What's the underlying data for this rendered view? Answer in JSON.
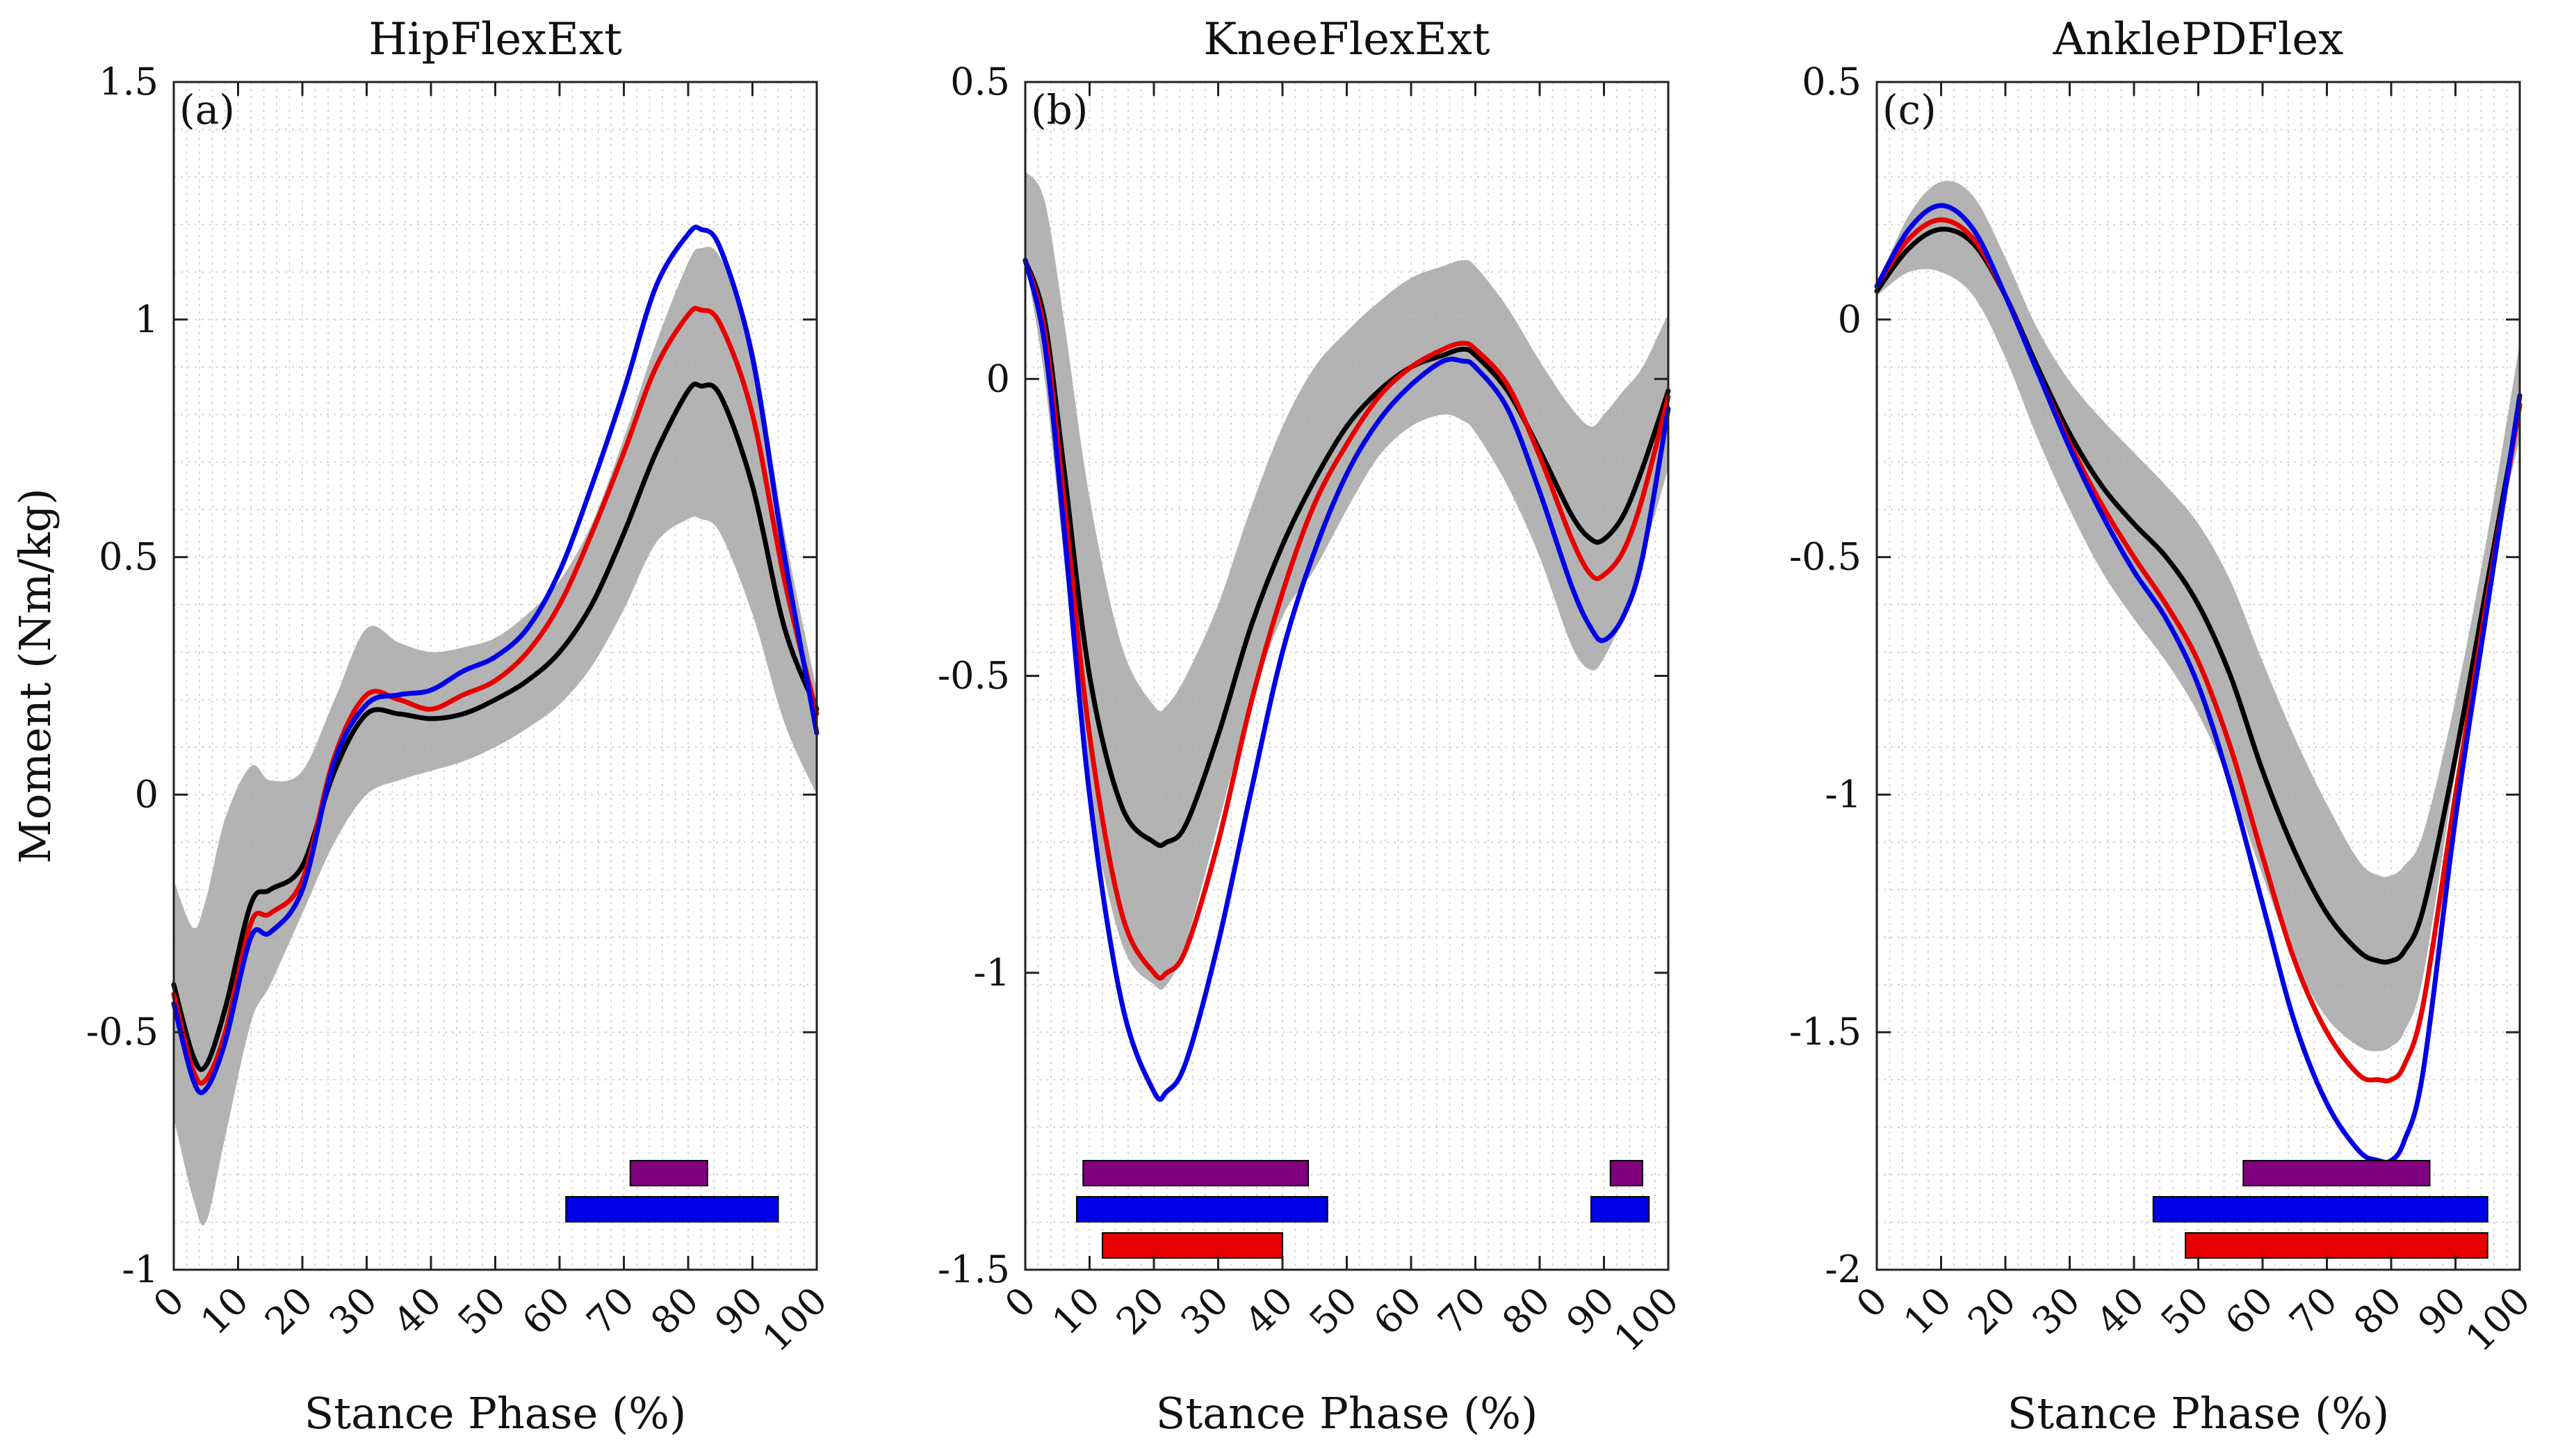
{
  "chart_data": [
    {
      "type": "line",
      "panel_label": "(a)",
      "title": "HipFlexExt",
      "xlabel": "Stance Phase (%)",
      "ylabel": "Moment (Nm/kg)",
      "xlim": [
        0,
        100
      ],
      "ylim": [
        -1,
        1.5
      ],
      "xticks": [
        "0",
        "10",
        "20",
        "30",
        "40",
        "50",
        "60",
        "70",
        "80",
        "90",
        "100"
      ],
      "yticks": [
        "-1",
        "-0.5",
        "0",
        "0.5",
        "1",
        "1.5"
      ],
      "ytick_values": [
        -1,
        -0.5,
        0,
        0.5,
        1,
        1.5
      ],
      "grid": true,
      "x": [
        0,
        3,
        5,
        8,
        12,
        15,
        20,
        25,
        30,
        35,
        40,
        45,
        50,
        55,
        60,
        65,
        70,
        75,
        80,
        82,
        85,
        90,
        95,
        100
      ],
      "band": {
        "upper": [
          -0.18,
          -0.28,
          -0.22,
          -0.05,
          0.06,
          0.03,
          0.05,
          0.2,
          0.35,
          0.32,
          0.3,
          0.31,
          0.33,
          0.38,
          0.45,
          0.57,
          0.75,
          0.95,
          1.12,
          1.15,
          1.13,
          0.95,
          0.55,
          0.22
        ],
        "lower": [
          -0.68,
          -0.85,
          -0.9,
          -0.72,
          -0.48,
          -0.4,
          -0.25,
          -0.1,
          0.0,
          0.03,
          0.05,
          0.07,
          0.1,
          0.14,
          0.19,
          0.27,
          0.39,
          0.53,
          0.58,
          0.58,
          0.55,
          0.38,
          0.15,
          0.0
        ]
      },
      "series": [
        {
          "color": "#000000",
          "values": [
            -0.4,
            -0.55,
            -0.57,
            -0.45,
            -0.23,
            -0.2,
            -0.15,
            0.05,
            0.17,
            0.17,
            0.16,
            0.17,
            0.2,
            0.24,
            0.3,
            0.4,
            0.55,
            0.72,
            0.85,
            0.86,
            0.84,
            0.65,
            0.35,
            0.18
          ]
        },
        {
          "color": "#e60000",
          "values": [
            -0.42,
            -0.58,
            -0.6,
            -0.5,
            -0.27,
            -0.25,
            -0.18,
            0.08,
            0.21,
            0.2,
            0.18,
            0.21,
            0.24,
            0.3,
            0.4,
            0.55,
            0.72,
            0.9,
            1.01,
            1.02,
            0.99,
            0.8,
            0.45,
            0.17
          ]
        },
        {
          "color": "#0000e6",
          "values": [
            -0.44,
            -0.6,
            -0.62,
            -0.52,
            -0.3,
            -0.29,
            -0.2,
            0.07,
            0.19,
            0.21,
            0.22,
            0.26,
            0.29,
            0.35,
            0.47,
            0.65,
            0.85,
            1.07,
            1.18,
            1.19,
            1.15,
            0.92,
            0.5,
            0.13
          ]
        }
      ],
      "significance_bars": [
        {
          "color": "#800080",
          "start": 71,
          "end": 83
        },
        {
          "color": "#0000e6",
          "start": 61,
          "end": 94
        }
      ]
    },
    {
      "type": "line",
      "panel_label": "(b)",
      "title": "KneeFlexExt",
      "xlabel": "Stance Phase (%)",
      "ylabel": "",
      "xlim": [
        0,
        100
      ],
      "ylim": [
        -1.5,
        0.5
      ],
      "xticks": [
        "0",
        "10",
        "20",
        "30",
        "40",
        "50",
        "60",
        "70",
        "80",
        "90",
        "100"
      ],
      "yticks": [
        "-1.5",
        "-1",
        "-0.5",
        "0",
        "0.5"
      ],
      "ytick_values": [
        -1.5,
        -1,
        -0.5,
        0,
        0.5
      ],
      "grid": true,
      "x": [
        0,
        3,
        6,
        10,
        15,
        20,
        22,
        25,
        30,
        35,
        40,
        45,
        50,
        55,
        60,
        65,
        68,
        70,
        75,
        80,
        85,
        88,
        90,
        93,
        96,
        100
      ],
      "band": {
        "upper": [
          0.35,
          0.3,
          0.1,
          -0.2,
          -0.45,
          -0.55,
          -0.55,
          -0.5,
          -0.38,
          -0.22,
          -0.08,
          0.02,
          0.08,
          0.13,
          0.17,
          0.19,
          0.2,
          0.19,
          0.12,
          0.03,
          -0.05,
          -0.08,
          -0.06,
          -0.02,
          0.02,
          0.11
        ],
        "lower": [
          0.2,
          0.0,
          -0.3,
          -0.7,
          -0.95,
          -1.02,
          -1.02,
          -0.95,
          -0.75,
          -0.55,
          -0.4,
          -0.32,
          -0.22,
          -0.13,
          -0.08,
          -0.06,
          -0.07,
          -0.09,
          -0.18,
          -0.3,
          -0.45,
          -0.49,
          -0.47,
          -0.4,
          -0.3,
          -0.15
        ]
      },
      "series": [
        {
          "color": "#000000",
          "values": [
            0.2,
            0.1,
            -0.15,
            -0.5,
            -0.72,
            -0.78,
            -0.78,
            -0.75,
            -0.6,
            -0.42,
            -0.28,
            -0.17,
            -0.08,
            -0.02,
            0.02,
            0.04,
            0.05,
            0.04,
            -0.02,
            -0.12,
            -0.23,
            -0.27,
            -0.27,
            -0.23,
            -0.15,
            -0.02
          ]
        },
        {
          "color": "#e60000",
          "values": [
            0.2,
            0.08,
            -0.2,
            -0.6,
            -0.9,
            -1.0,
            -1.0,
            -0.96,
            -0.78,
            -0.55,
            -0.36,
            -0.21,
            -0.11,
            -0.03,
            0.02,
            0.05,
            0.06,
            0.05,
            -0.01,
            -0.13,
            -0.27,
            -0.33,
            -0.33,
            -0.29,
            -0.2,
            -0.03
          ]
        },
        {
          "color": "#0000e6",
          "values": [
            0.2,
            0.06,
            -0.25,
            -0.7,
            -1.05,
            -1.2,
            -1.2,
            -1.15,
            -0.95,
            -0.7,
            -0.46,
            -0.29,
            -0.16,
            -0.07,
            -0.01,
            0.03,
            0.03,
            0.02,
            -0.05,
            -0.19,
            -0.35,
            -0.42,
            -0.44,
            -0.4,
            -0.3,
            -0.05
          ]
        }
      ],
      "significance_bars": [
        {
          "color": "#800080",
          "start": 9,
          "end": 44
        },
        {
          "color": "#800080",
          "start": 91,
          "end": 96
        },
        {
          "color": "#0000e6",
          "start": 8,
          "end": 47
        },
        {
          "color": "#0000e6",
          "start": 88,
          "end": 97
        },
        {
          "color": "#e60000",
          "start": 12,
          "end": 40
        }
      ]
    },
    {
      "type": "line",
      "panel_label": "(c)",
      "title": "AnklePDFlex",
      "xlabel": "Stance Phase (%)",
      "ylabel": "",
      "xlim": [
        0,
        100
      ],
      "ylim": [
        -2,
        0.5
      ],
      "xticks": [
        "0",
        "10",
        "20",
        "30",
        "40",
        "50",
        "60",
        "70",
        "80",
        "90",
        "100"
      ],
      "yticks": [
        "-2",
        "-1.5",
        "-1",
        "-0.5",
        "0",
        "0.5"
      ],
      "ytick_values": [
        -2,
        -1.5,
        -1,
        -0.5,
        0,
        0.5
      ],
      "grid": true,
      "x": [
        0,
        5,
        10,
        15,
        20,
        25,
        30,
        35,
        40,
        45,
        50,
        55,
        60,
        65,
        70,
        75,
        78,
        80,
        82,
        85,
        90,
        95,
        100
      ],
      "band": {
        "upper": [
          0.07,
          0.22,
          0.29,
          0.26,
          0.13,
          -0.02,
          -0.13,
          -0.21,
          -0.28,
          -0.35,
          -0.43,
          -0.55,
          -0.72,
          -0.88,
          -1.02,
          -1.14,
          -1.17,
          -1.17,
          -1.15,
          -1.08,
          -0.8,
          -0.45,
          -0.05
        ],
        "lower": [
          0.05,
          0.1,
          0.1,
          0.05,
          -0.08,
          -0.25,
          -0.4,
          -0.53,
          -0.63,
          -0.72,
          -0.83,
          -0.98,
          -1.17,
          -1.35,
          -1.47,
          -1.53,
          -1.54,
          -1.53,
          -1.5,
          -1.38,
          -0.95,
          -0.55,
          -0.25
        ]
      },
      "series": [
        {
          "color": "#000000",
          "values": [
            0.06,
            0.15,
            0.19,
            0.16,
            0.05,
            -0.1,
            -0.24,
            -0.35,
            -0.43,
            -0.5,
            -0.6,
            -0.75,
            -0.95,
            -1.12,
            -1.25,
            -1.33,
            -1.35,
            -1.35,
            -1.33,
            -1.24,
            -0.92,
            -0.55,
            -0.18
          ]
        },
        {
          "color": "#e60000",
          "values": [
            0.07,
            0.17,
            0.21,
            0.17,
            0.05,
            -0.11,
            -0.26,
            -0.39,
            -0.5,
            -0.6,
            -0.72,
            -0.9,
            -1.13,
            -1.35,
            -1.5,
            -1.59,
            -1.6,
            -1.6,
            -1.57,
            -1.44,
            -1.0,
            -0.58,
            -0.18
          ]
        },
        {
          "color": "#0000e6",
          "values": [
            0.07,
            0.19,
            0.24,
            0.19,
            0.05,
            -0.11,
            -0.27,
            -0.41,
            -0.53,
            -0.63,
            -0.77,
            -0.98,
            -1.23,
            -1.48,
            -1.65,
            -1.75,
            -1.77,
            -1.77,
            -1.73,
            -1.58,
            -1.05,
            -0.6,
            -0.16
          ]
        }
      ],
      "significance_bars": [
        {
          "color": "#800080",
          "start": 57,
          "end": 86
        },
        {
          "color": "#0000e6",
          "start": 43,
          "end": 95
        },
        {
          "color": "#e60000",
          "start": 48,
          "end": 95
        }
      ]
    }
  ]
}
